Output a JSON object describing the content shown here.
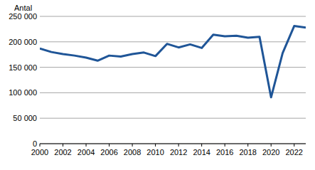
{
  "chart_data": {
    "type": "line",
    "y_label": "Antal",
    "x": [
      2000,
      2001,
      2002,
      2003,
      2004,
      2005,
      2006,
      2007,
      2008,
      2009,
      2010,
      2011,
      2012,
      2013,
      2014,
      2015,
      2016,
      2017,
      2018,
      2019,
      2020,
      2021,
      2022,
      2023
    ],
    "values": [
      187000,
      180000,
      176000,
      173000,
      169000,
      163000,
      173000,
      171000,
      176000,
      179000,
      172000,
      196000,
      189000,
      195000,
      188000,
      214000,
      211000,
      212000,
      208000,
      210000,
      91000,
      178000,
      231000,
      228000
    ],
    "color": "#1f5597",
    "xlim": [
      2000,
      2023
    ],
    "xticks": [
      2000,
      2002,
      2004,
      2006,
      2008,
      2010,
      2012,
      2014,
      2016,
      2018,
      2020,
      2022
    ],
    "ylim": [
      0,
      250000
    ],
    "yticks": [
      0,
      {
        "value": 50000,
        "label": "50 000"
      },
      {
        "value": 100000,
        "label": "100 000"
      },
      {
        "value": 150000,
        "label": "150 000"
      },
      {
        "value": 200000,
        "label": "200 000"
      },
      {
        "value": 250000,
        "label": "250 000"
      }
    ],
    "grid": true
  }
}
